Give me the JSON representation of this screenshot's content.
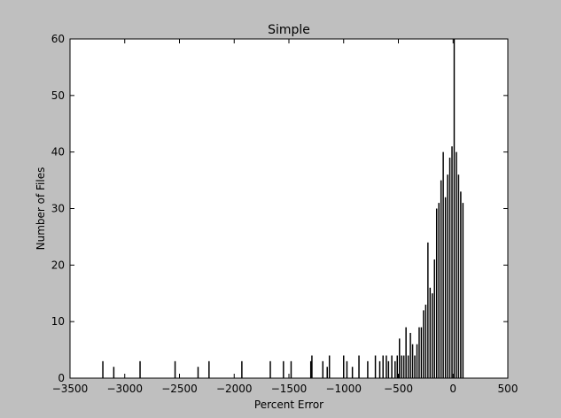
{
  "chart_data": {
    "type": "bar",
    "title": "Simple",
    "xlabel": "Percent Error",
    "ylabel": "Number of Files",
    "xlim": [
      -3500,
      500
    ],
    "ylim": [
      0,
      60
    ],
    "xticks": [
      "−3500",
      "−3000",
      "−2500",
      "−2000",
      "−1500",
      "−1000",
      "−500",
      "0",
      "500"
    ],
    "yticks": [
      "0",
      "10",
      "20",
      "30",
      "40",
      "50",
      "60"
    ],
    "grid": false,
    "legend": "none",
    "bar_color": "#000000",
    "x": [
      -3200,
      -3100,
      -2860,
      -2540,
      -2330,
      -2230,
      -1930,
      -1670,
      -1550,
      -1480,
      -1300,
      -1290,
      -1190,
      -1150,
      -1130,
      -1000,
      -970,
      -920,
      -860,
      -780,
      -710,
      -670,
      -640,
      -610,
      -590,
      -560,
      -530,
      -510,
      -490,
      -470,
      -450,
      -430,
      -410,
      -390,
      -370,
      -350,
      -330,
      -310,
      -290,
      -270,
      -250,
      -230,
      -210,
      -190,
      -170,
      -150,
      -130,
      -110,
      -90,
      -70,
      -50,
      -30,
      -10,
      10,
      30,
      50,
      70,
      90
    ],
    "values": [
      3,
      2,
      3,
      3,
      2,
      3,
      3,
      3,
      3,
      3,
      3,
      4,
      3,
      2,
      4,
      4,
      3,
      2,
      4,
      3,
      4,
      3,
      4,
      4,
      3,
      4,
      3,
      4,
      7,
      4,
      4,
      9,
      4,
      8,
      6,
      4,
      6,
      9,
      9,
      12,
      13,
      24,
      16,
      15,
      21,
      30,
      31,
      35,
      40,
      32,
      36,
      39,
      41,
      60,
      40,
      36,
      33,
      31
    ]
  }
}
